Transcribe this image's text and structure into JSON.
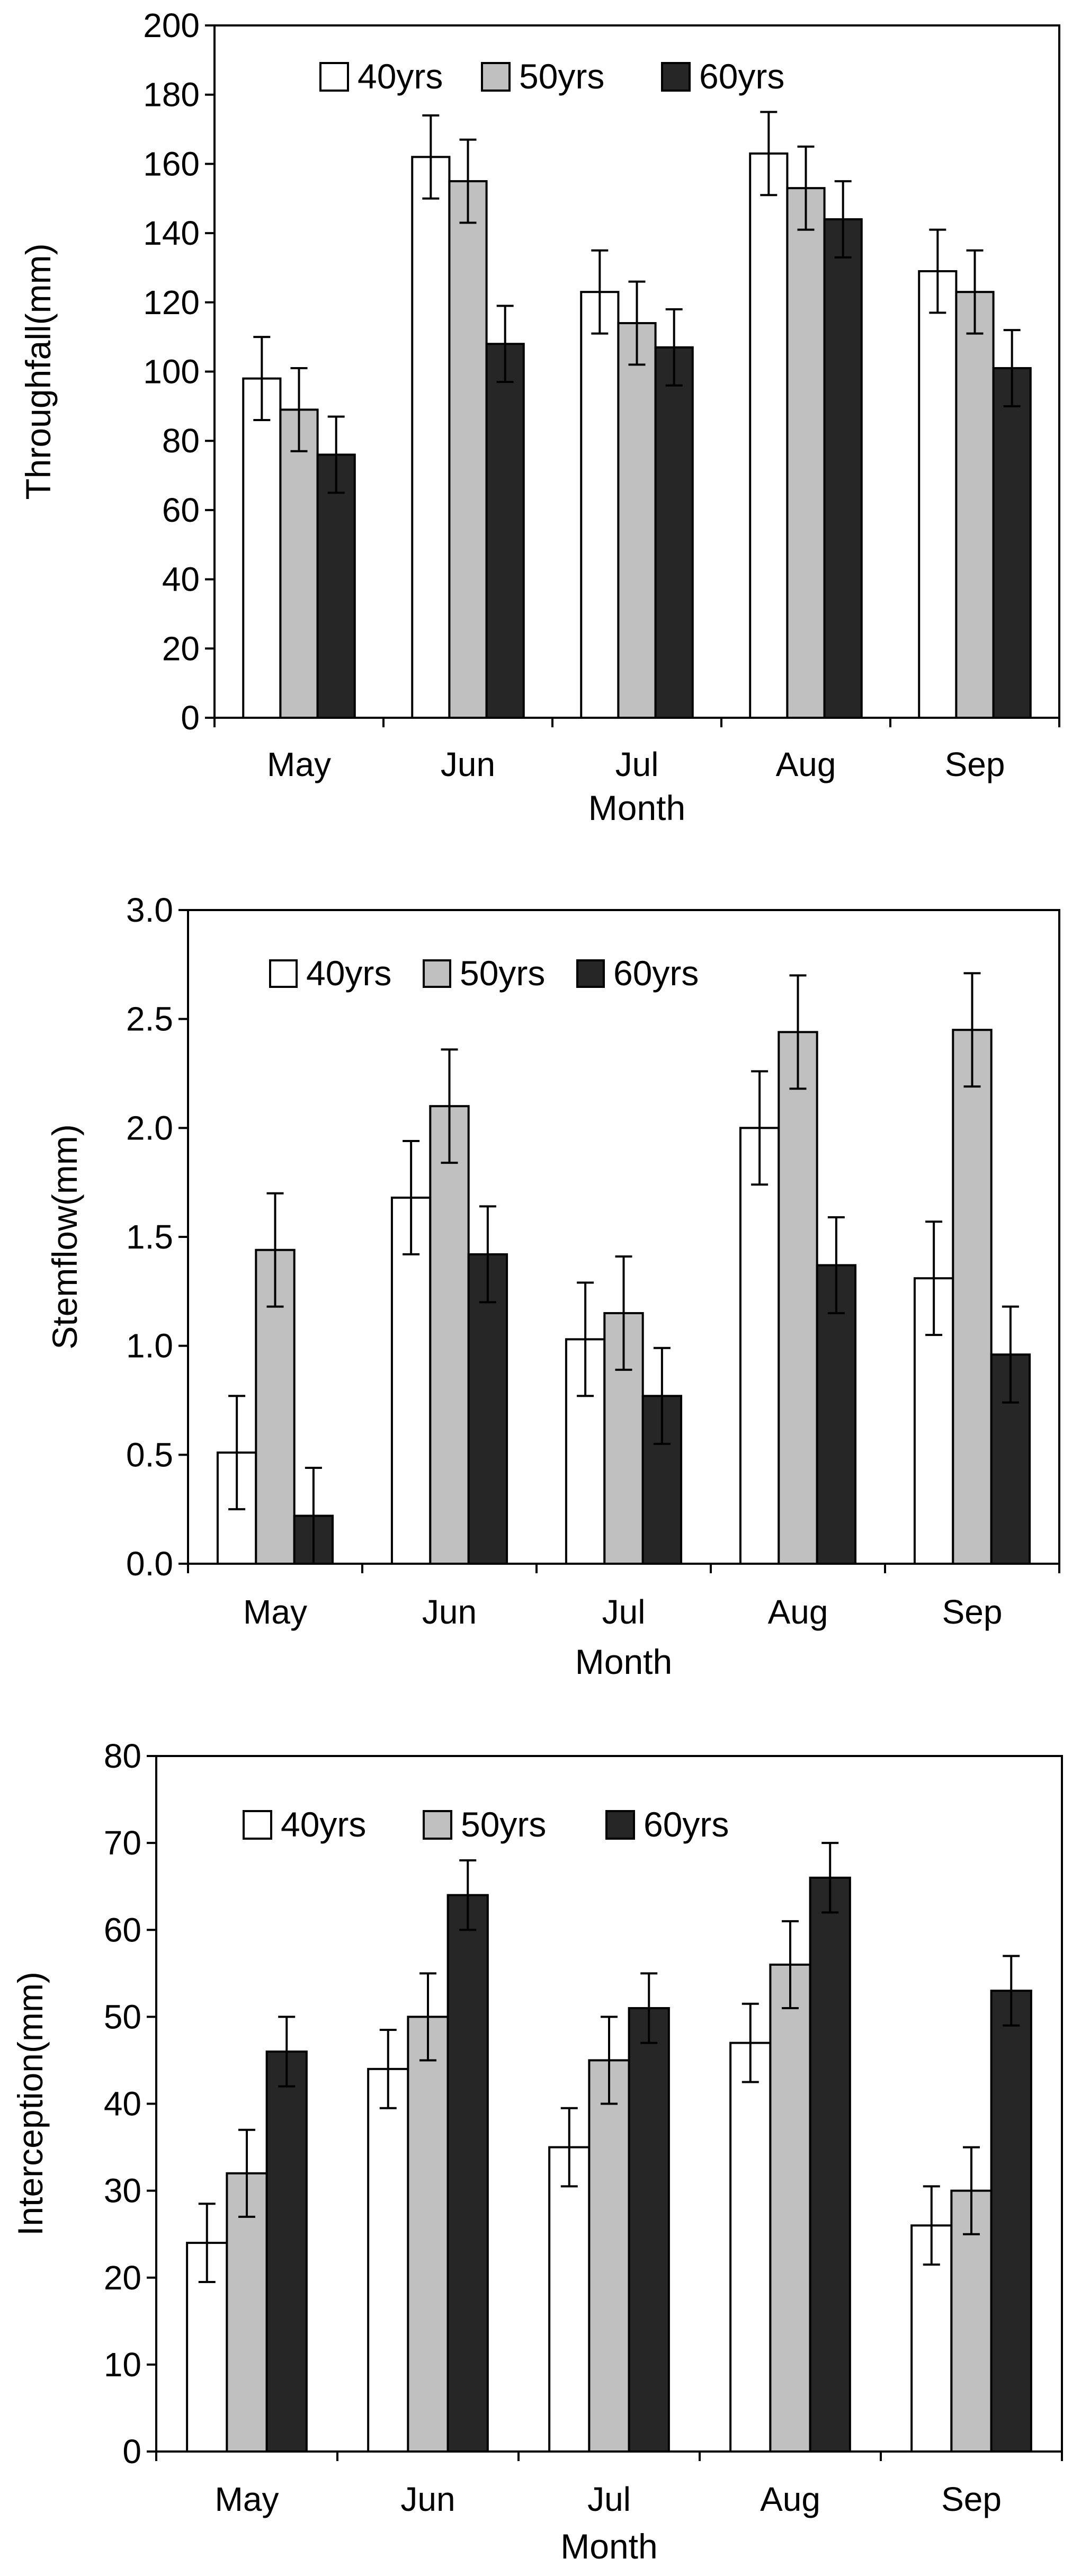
{
  "colors": {
    "series_40": "#ffffff",
    "series_50": "#c0c0c0",
    "series_60": "#262626",
    "stroke": "#000000"
  },
  "chart_data": [
    {
      "type": "bar",
      "ylabel": "Throughfall(mm)",
      "xlabel": "Month",
      "categories": [
        "May",
        "Jun",
        "Jul",
        "Aug",
        "Sep"
      ],
      "ylim": [
        0,
        200
      ],
      "yticks": [
        0,
        20,
        40,
        60,
        80,
        100,
        120,
        140,
        160,
        180,
        200
      ],
      "ytick_labels": [
        "0",
        "20",
        "40",
        "60",
        "80",
        "100",
        "120",
        "140",
        "160",
        "180",
        "200"
      ],
      "legend": [
        "40yrs",
        "50yrs",
        "60yrs"
      ],
      "series": [
        {
          "name": "40yrs",
          "values": [
            98,
            162,
            123,
            163,
            129
          ],
          "errors": [
            12,
            12,
            12,
            12,
            12
          ]
        },
        {
          "name": "50yrs",
          "values": [
            89,
            155,
            114,
            153,
            123
          ],
          "errors": [
            12,
            12,
            12,
            12,
            12
          ]
        },
        {
          "name": "60yrs",
          "values": [
            76,
            108,
            107,
            144,
            101
          ],
          "errors": [
            11,
            11,
            11,
            11,
            11
          ]
        }
      ]
    },
    {
      "type": "bar",
      "ylabel": "Stemflow(mm)",
      "xlabel": "Month",
      "categories": [
        "May",
        "Jun",
        "Jul",
        "Aug",
        "Sep"
      ],
      "ylim": [
        0,
        3.0
      ],
      "yticks": [
        0,
        0.5,
        1.0,
        1.5,
        2.0,
        2.5,
        3.0
      ],
      "ytick_labels": [
        "0.0",
        "0.5",
        "1.0",
        "1.5",
        "2.0",
        "2.5",
        "3.0"
      ],
      "legend": [
        "40yrs",
        "50yrs",
        "60yrs"
      ],
      "series": [
        {
          "name": "40yrs",
          "values": [
            0.51,
            1.68,
            1.03,
            2.0,
            1.31
          ],
          "errors": [
            0.26,
            0.26,
            0.26,
            0.26,
            0.26
          ]
        },
        {
          "name": "50yrs",
          "values": [
            1.44,
            2.1,
            1.15,
            2.44,
            2.45
          ],
          "errors": [
            0.26,
            0.26,
            0.26,
            0.26,
            0.26
          ]
        },
        {
          "name": "60yrs",
          "values": [
            0.22,
            1.42,
            0.77,
            1.37,
            0.96
          ],
          "errors": [
            0.22,
            0.22,
            0.22,
            0.22,
            0.22
          ]
        }
      ]
    },
    {
      "type": "bar",
      "ylabel": "Interception(mm)",
      "xlabel": "Month",
      "categories": [
        "May",
        "Jun",
        "Jul",
        "Aug",
        "Sep"
      ],
      "ylim": [
        0,
        80
      ],
      "yticks": [
        0,
        10,
        20,
        30,
        40,
        50,
        60,
        70,
        80
      ],
      "ytick_labels": [
        "0",
        "10",
        "20",
        "30",
        "40",
        "50",
        "60",
        "70",
        "80"
      ],
      "legend": [
        "40yrs",
        "50yrs",
        "60yrs"
      ],
      "series": [
        {
          "name": "40yrs",
          "values": [
            24,
            44,
            35,
            47,
            26
          ],
          "errors": [
            4.5,
            4.5,
            4.5,
            4.5,
            4.5
          ]
        },
        {
          "name": "50yrs",
          "values": [
            32,
            50,
            45,
            56,
            30
          ],
          "errors": [
            5,
            5,
            5,
            5,
            5
          ]
        },
        {
          "name": "60yrs",
          "values": [
            46,
            64,
            51,
            66,
            53
          ],
          "errors": [
            4,
            4,
            4,
            4,
            4
          ]
        }
      ]
    }
  ]
}
